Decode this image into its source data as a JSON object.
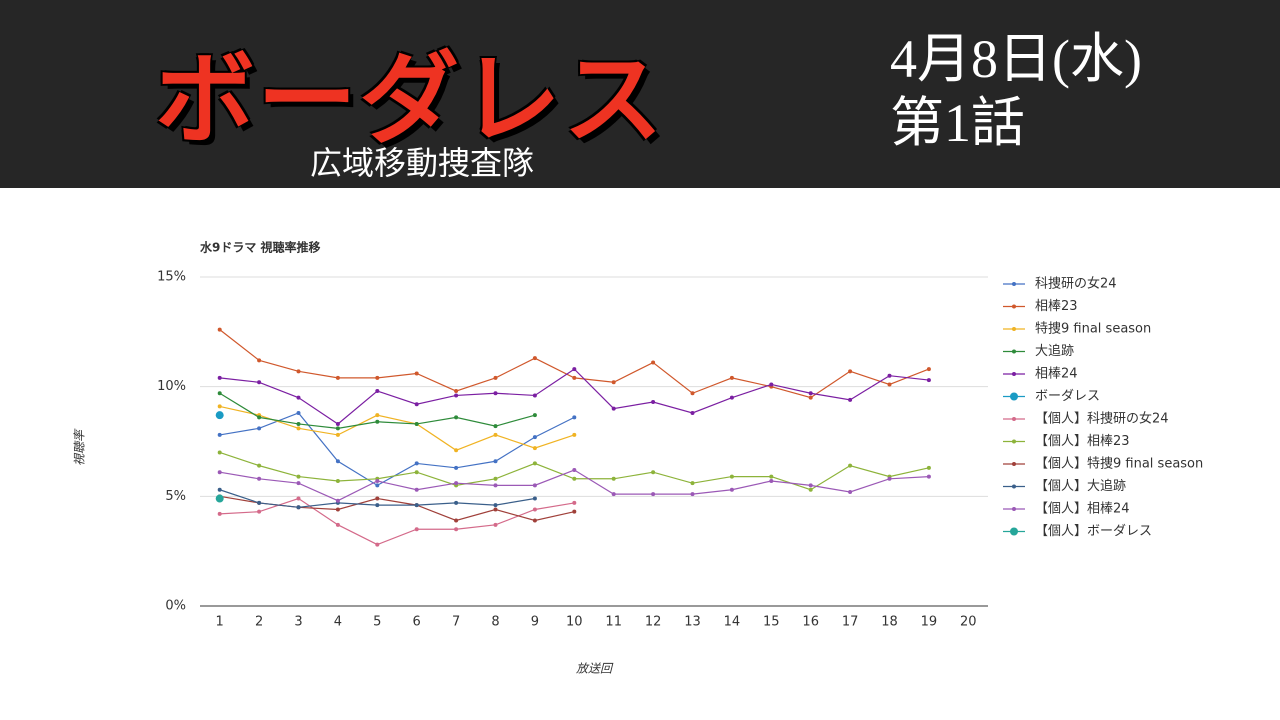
{
  "header": {
    "title": "ボーダレス",
    "subtitle": "広域移動捜査隊",
    "date": "4月8日(水)",
    "episode": "第1話"
  },
  "chart_data": {
    "type": "line",
    "title": "水9ドラマ 視聴率推移",
    "y_label": "視聴率",
    "x_label": "放送回",
    "categories": [
      "1",
      "2",
      "3",
      "4",
      "5",
      "6",
      "7",
      "8",
      "9",
      "10",
      "11",
      "12",
      "13",
      "14",
      "15",
      "16",
      "17",
      "18",
      "19",
      "20"
    ],
    "ylim": [
      0,
      15
    ],
    "yticks": [
      {
        "value": 0,
        "label": "0%"
      },
      {
        "value": 5,
        "label": "5%"
      },
      {
        "value": 10,
        "label": "10%"
      },
      {
        "value": 15,
        "label": "15%"
      }
    ],
    "grid": true,
    "legend": "right",
    "series": [
      {
        "name": "科捜研の女24",
        "color": "#4472c4",
        "values": [
          7.8,
          8.1,
          8.8,
          6.6,
          5.5,
          6.5,
          6.3,
          6.6,
          7.7,
          8.6,
          null,
          null,
          null,
          null,
          null,
          null,
          null,
          null,
          null,
          null
        ]
      },
      {
        "name": "相棒23",
        "color": "#d0582c",
        "values": [
          12.6,
          11.2,
          10.7,
          10.4,
          10.4,
          10.6,
          9.8,
          10.4,
          11.3,
          10.4,
          10.2,
          11.1,
          9.7,
          10.4,
          10.0,
          9.5,
          10.7,
          10.1,
          10.8,
          null
        ]
      },
      {
        "name": "特捜9 final season",
        "color": "#f0b323",
        "values": [
          9.1,
          8.7,
          8.1,
          7.8,
          8.7,
          8.3,
          7.1,
          7.8,
          7.2,
          7.8,
          null,
          null,
          null,
          null,
          null,
          null,
          null,
          null,
          null,
          null
        ]
      },
      {
        "name": "大追跡",
        "color": "#2e8b3a",
        "values": [
          9.7,
          8.6,
          8.3,
          8.1,
          8.4,
          8.3,
          8.6,
          8.2,
          8.7,
          null,
          null,
          null,
          null,
          null,
          null,
          null,
          null,
          null,
          null,
          null
        ]
      },
      {
        "name": "相棒24",
        "color": "#7b1fa2",
        "values": [
          10.4,
          10.2,
          9.5,
          8.3,
          9.8,
          9.2,
          9.6,
          9.7,
          9.6,
          10.8,
          9.0,
          9.3,
          8.8,
          9.5,
          10.1,
          9.7,
          9.4,
          10.5,
          10.3,
          null
        ]
      },
      {
        "name": "ボーダレス",
        "color": "#1a9bc4",
        "values": [
          8.7,
          null,
          null,
          null,
          null,
          null,
          null,
          null,
          null,
          null,
          null,
          null,
          null,
          null,
          null,
          null,
          null,
          null,
          null,
          null
        ]
      },
      {
        "name": "【個人】科捜研の女24",
        "color": "#d46a8a",
        "values": [
          4.2,
          4.3,
          4.9,
          3.7,
          2.8,
          3.5,
          3.5,
          3.7,
          4.4,
          4.7,
          null,
          null,
          null,
          null,
          null,
          null,
          null,
          null,
          null,
          null
        ]
      },
      {
        "name": "【個人】相棒23",
        "color": "#8db33a",
        "values": [
          7.0,
          6.4,
          5.9,
          5.7,
          5.8,
          6.1,
          5.5,
          5.8,
          6.5,
          5.8,
          5.8,
          6.1,
          5.6,
          5.9,
          5.9,
          5.3,
          6.4,
          5.9,
          6.3,
          null
        ]
      },
      {
        "name": "【個人】特捜9 final season",
        "color": "#a0403a",
        "values": [
          5.0,
          4.7,
          4.5,
          4.4,
          4.9,
          4.6,
          3.9,
          4.4,
          3.9,
          4.3,
          null,
          null,
          null,
          null,
          null,
          null,
          null,
          null,
          null,
          null
        ]
      },
      {
        "name": "【個人】大追跡",
        "color": "#3a5f8a",
        "values": [
          5.3,
          4.7,
          4.5,
          4.7,
          4.6,
          4.6,
          4.7,
          4.6,
          4.9,
          null,
          null,
          null,
          null,
          null,
          null,
          null,
          null,
          null,
          null,
          null
        ]
      },
      {
        "name": "【個人】相棒24",
        "color": "#9b59b6",
        "values": [
          6.1,
          5.8,
          5.6,
          4.8,
          5.7,
          5.3,
          5.6,
          5.5,
          5.5,
          6.2,
          5.1,
          5.1,
          5.1,
          5.3,
          5.7,
          5.5,
          5.2,
          5.8,
          5.9,
          null
        ]
      },
      {
        "name": "【個人】ボーダレス",
        "color": "#26a69a",
        "values": [
          4.9,
          null,
          null,
          null,
          null,
          null,
          null,
          null,
          null,
          null,
          null,
          null,
          null,
          null,
          null,
          null,
          null,
          null,
          null,
          null
        ]
      }
    ]
  }
}
